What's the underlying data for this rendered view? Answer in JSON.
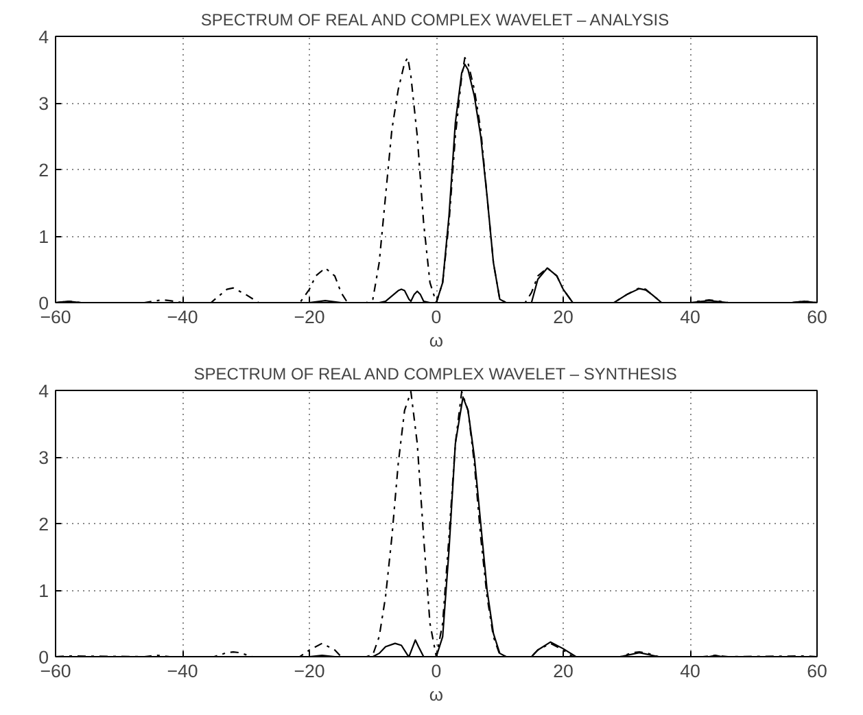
{
  "chart_data": [
    {
      "type": "line",
      "title": "SPECTRUM OF REAL AND COMPLEX WAVELET – ANALYSIS",
      "xlabel": "ω",
      "xlim": [
        -60,
        60
      ],
      "ylim": [
        0,
        4
      ],
      "xticks": [
        -60,
        -40,
        -20,
        0,
        20,
        40,
        60
      ],
      "yticks": [
        0,
        1,
        2,
        3,
        4
      ],
      "grid": true,
      "marker": "none",
      "series": [
        {
          "color": "#000000",
          "line_style": "solid",
          "x": [
            -60,
            -58,
            -56,
            -20,
            -17.5,
            -15,
            -9,
            -8,
            -7,
            -6,
            -5.5,
            -5,
            -4.3,
            -4,
            -3.5,
            -3,
            -2.5,
            -2,
            -1,
            0,
            1,
            2,
            3,
            4,
            4.5,
            5,
            6,
            7,
            8,
            9,
            10,
            11,
            15,
            16,
            17.5,
            19,
            20,
            21.5,
            28,
            30,
            32,
            33,
            34,
            35.5,
            40,
            42,
            43,
            44,
            46,
            56,
            58,
            60
          ],
          "values": [
            0,
            0.02,
            0,
            0,
            0.03,
            0,
            0,
            0.02,
            0.1,
            0.18,
            0.2,
            0.18,
            0.05,
            0.02,
            0.12,
            0.17,
            0.12,
            0.02,
            0,
            0,
            0.3,
            1.3,
            2.7,
            3.45,
            3.58,
            3.5,
            3.1,
            2.5,
            1.6,
            0.6,
            0.05,
            0,
            0,
            0.35,
            0.52,
            0.4,
            0.2,
            0,
            0,
            0.12,
            0.21,
            0.19,
            0.12,
            0,
            0,
            0.02,
            0.03,
            0.02,
            0,
            0,
            0.02,
            0
          ]
        },
        {
          "color": "#000000",
          "line_style": "dashed",
          "x": [
            -60,
            -58,
            -56,
            -46,
            -44,
            -43,
            -42,
            -40,
            -35.5,
            -34,
            -33,
            -32,
            -30,
            -28,
            -21.5,
            -20,
            -19,
            -17.5,
            -16,
            -15,
            -14,
            -11,
            -10,
            -9,
            -8,
            -7,
            -6,
            -5,
            -4.5,
            -4,
            -3,
            -2,
            -1,
            0,
            1,
            2,
            3,
            4,
            4.5,
            5,
            6,
            7,
            8,
            9,
            10,
            11,
            14,
            15,
            16,
            17.5,
            19,
            20,
            21.5,
            28,
            30,
            32,
            33,
            34,
            35.5,
            40,
            42,
            43,
            44,
            46,
            56,
            58,
            60
          ],
          "values": [
            0,
            0.02,
            0,
            0,
            0.03,
            0.04,
            0.03,
            0,
            0,
            0.12,
            0.2,
            0.22,
            0.12,
            0,
            0,
            0.2,
            0.4,
            0.52,
            0.4,
            0.15,
            0,
            0,
            0.05,
            0.6,
            1.6,
            2.6,
            3.2,
            3.6,
            3.68,
            3.4,
            2.5,
            1.2,
            0.3,
            0,
            0.3,
            1.2,
            2.5,
            3.4,
            3.68,
            3.6,
            3.2,
            2.6,
            1.6,
            0.6,
            0.05,
            0,
            0,
            0.15,
            0.4,
            0.52,
            0.4,
            0.2,
            0,
            0,
            0.12,
            0.22,
            0.2,
            0.12,
            0,
            0,
            0.03,
            0.04,
            0.03,
            0,
            0,
            0.02,
            0
          ]
        }
      ]
    },
    {
      "type": "line",
      "title": "SPECTRUM OF REAL AND COMPLEX WAVELET – SYNTHESIS",
      "xlabel": "ω",
      "xlim": [
        -60,
        60
      ],
      "ylim": [
        0,
        4
      ],
      "xticks": [
        -60,
        -40,
        -20,
        0,
        20,
        40,
        60
      ],
      "yticks": [
        0,
        1,
        2,
        3,
        4
      ],
      "grid": true,
      "marker": "none",
      "series": [
        {
          "color": "#000000",
          "line_style": "solid",
          "x": [
            -60,
            -20,
            -18,
            -16,
            -10,
            -9,
            -8,
            -6.5,
            -5.5,
            -4.5,
            -4.3,
            -3.7,
            -3.3,
            -2.8,
            -2,
            0,
            1,
            2,
            3,
            4.2,
            5,
            6,
            7,
            8,
            9,
            10,
            11,
            15,
            16,
            18,
            20,
            22,
            29,
            32,
            35,
            43,
            44,
            45,
            60
          ],
          "values": [
            0,
            0,
            0.02,
            0,
            0,
            0.05,
            0.15,
            0.2,
            0.17,
            0.02,
            0,
            0.15,
            0.25,
            0.15,
            0,
            0,
            0.3,
            1.6,
            3.2,
            3.9,
            3.7,
            3.0,
            2.0,
            1.0,
            0.35,
            0.05,
            0,
            0,
            0.1,
            0.22,
            0.12,
            0,
            0,
            0.06,
            0,
            0,
            0.02,
            0,
            0
          ]
        },
        {
          "color": "#000000",
          "line_style": "dashed",
          "x": [
            -60,
            -58,
            -46,
            -44,
            -42,
            -35,
            -33,
            -32,
            -31,
            -29,
            -21.5,
            -20,
            -18,
            -16,
            -15,
            -11,
            -10,
            -9,
            -8,
            -7,
            -6,
            -5,
            -4,
            -3,
            -2,
            -1,
            0,
            1,
            2,
            3,
            4,
            5,
            6,
            7,
            8,
            9,
            10,
            11,
            15,
            16,
            18,
            20,
            21.5,
            29,
            31,
            32,
            33,
            35,
            42,
            44,
            46,
            58,
            60
          ],
          "values": [
            0,
            0.01,
            0,
            0.02,
            0,
            0,
            0.06,
            0.07,
            0.06,
            0,
            0,
            0.1,
            0.2,
            0.1,
            0,
            0,
            0.03,
            0.3,
            0.9,
            1.8,
            2.9,
            3.7,
            3.98,
            3.2,
            1.8,
            0.5,
            0,
            0.5,
            1.8,
            3.2,
            3.98,
            3.7,
            2.9,
            1.8,
            0.9,
            0.3,
            0.03,
            0,
            0,
            0.1,
            0.2,
            0.1,
            0,
            0,
            0.06,
            0.07,
            0.06,
            0,
            0,
            0.02,
            0,
            0.01,
            0
          ]
        }
      ]
    }
  ]
}
